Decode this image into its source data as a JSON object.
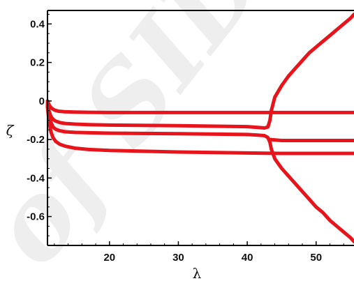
{
  "chart_data": {
    "type": "line",
    "title": "",
    "xlabel": "λ",
    "ylabel": "ζ",
    "xlim": [
      11,
      55.5
    ],
    "ylim": [
      -0.75,
      0.47
    ],
    "xticks": [
      20,
      30,
      40,
      50
    ],
    "yticks": [
      0.4,
      0.2,
      0,
      -0.2,
      -0.4,
      -0.6
    ],
    "xtick_labels": [
      "20",
      "30",
      "40",
      "50"
    ],
    "ytick_labels": [
      "0.4",
      "0.2",
      "0",
      "-0.2",
      "-0.4",
      "-0.6"
    ],
    "grid": false,
    "legend": "none",
    "line_color": "#e8141b",
    "watermark": "of SID",
    "series": [
      {
        "x": [
          11,
          11.3,
          11.6,
          12,
          12.6,
          13.5,
          15,
          17,
          20,
          30,
          40,
          45,
          50,
          55.5
        ],
        "y": [
          0,
          -0.025,
          -0.038,
          -0.047,
          -0.053,
          -0.056,
          -0.058,
          -0.059,
          -0.06,
          -0.06,
          -0.06,
          -0.06,
          -0.06,
          -0.06
        ]
      },
      {
        "x": [
          11,
          11.2,
          11.5,
          11.8,
          12.2,
          12.8,
          13.6,
          15,
          17,
          20,
          30,
          40,
          41.5,
          42.5,
          43,
          43.3,
          43.5
        ],
        "y": [
          -0.01,
          -0.05,
          -0.08,
          -0.095,
          -0.105,
          -0.112,
          -0.117,
          -0.12,
          -0.123,
          -0.125,
          -0.128,
          -0.133,
          -0.137,
          -0.14,
          -0.135,
          -0.1,
          -0.05
        ]
      },
      {
        "x": [
          43.5,
          44,
          45,
          46,
          47,
          48,
          49,
          50,
          51,
          52,
          53,
          54,
          55,
          55.5
        ],
        "y": [
          -0.05,
          0.02,
          0.08,
          0.13,
          0.17,
          0.21,
          0.25,
          0.28,
          0.31,
          0.34,
          0.37,
          0.4,
          0.43,
          0.45
        ]
      },
      {
        "x": [
          11,
          11.2,
          11.5,
          11.8,
          12.2,
          12.8,
          13.6,
          15,
          17,
          20,
          30,
          40,
          41.5,
          42.5,
          43,
          43.3,
          43.5
        ],
        "y": [
          -0.02,
          -0.07,
          -0.11,
          -0.135,
          -0.147,
          -0.155,
          -0.16,
          -0.163,
          -0.165,
          -0.167,
          -0.17,
          -0.174,
          -0.177,
          -0.18,
          -0.19,
          -0.215,
          -0.25
        ]
      },
      {
        "x": [
          43.5,
          44,
          45,
          46,
          47,
          48,
          49,
          50,
          51,
          52,
          53,
          54,
          55,
          55.5
        ],
        "y": [
          -0.25,
          -0.3,
          -0.35,
          -0.39,
          -0.43,
          -0.47,
          -0.51,
          -0.55,
          -0.58,
          -0.62,
          -0.65,
          -0.68,
          -0.71,
          -0.73
        ]
      },
      {
        "x": [
          43.3,
          45,
          50,
          55.5
        ],
        "y": [
          -0.2,
          -0.205,
          -0.205,
          -0.205
        ]
      },
      {
        "x": [
          11,
          11.2,
          11.5,
          11.8,
          12.2,
          12.8,
          13.6,
          15,
          17,
          20,
          30,
          40,
          45,
          50,
          55.5
        ],
        "y": [
          -0.03,
          -0.1,
          -0.16,
          -0.19,
          -0.21,
          -0.225,
          -0.235,
          -0.245,
          -0.252,
          -0.257,
          -0.265,
          -0.27,
          -0.272,
          -0.272,
          -0.272
        ]
      }
    ]
  }
}
